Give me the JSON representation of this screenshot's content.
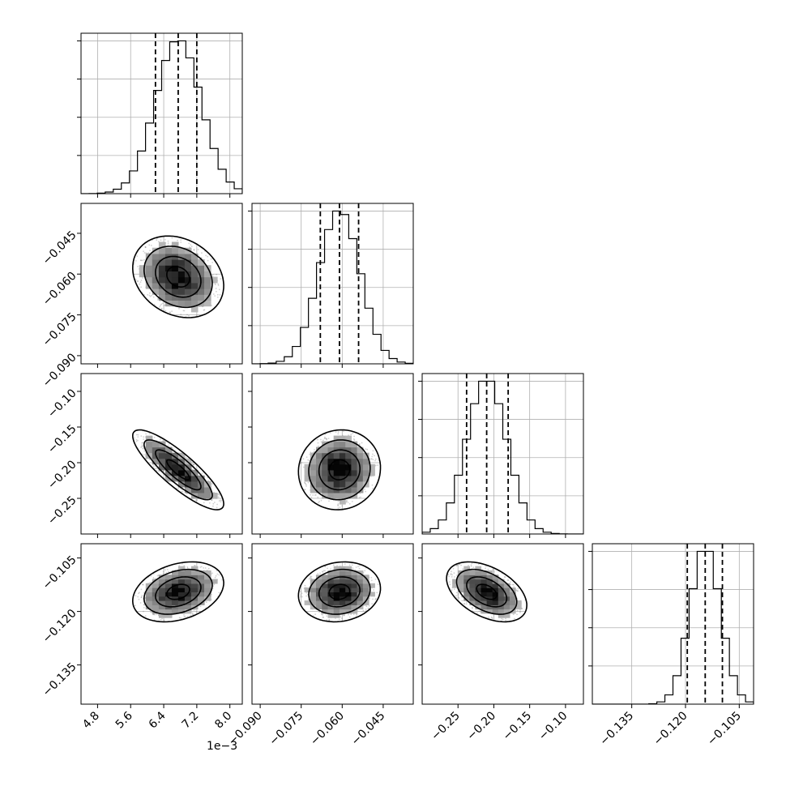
{
  "chart_data": {
    "type": "corner",
    "parameters": [
      {
        "range": [
          4.4,
          8.3
        ],
        "ticks": [
          4.8,
          5.6,
          6.4,
          7.2,
          8.0
        ],
        "tick_labels": [
          "4.8",
          "5.6",
          "6.4",
          "7.2",
          "8.0"
        ],
        "offset_text": "1e−3",
        "mean": 6.75,
        "std": 0.55,
        "quantiles": [
          6.2,
          6.75,
          7.2
        ]
      },
      {
        "range": [
          -0.093,
          -0.034
        ],
        "ticks": [
          -0.09,
          -0.075,
          -0.06,
          -0.045
        ],
        "tick_labels": [
          "−0.090",
          "−0.075",
          "−0.060",
          "−0.045"
        ],
        "mean": -0.061,
        "std": 0.0075,
        "quantiles": [
          -0.068,
          -0.061,
          -0.054
        ]
      },
      {
        "range": [
          -0.3,
          -0.075
        ],
        "ticks": [
          -0.25,
          -0.2,
          -0.15,
          -0.1
        ],
        "tick_labels": [
          "−0.25",
          "−0.20",
          "−0.15",
          "−0.10"
        ],
        "mean": -0.21,
        "std": 0.028,
        "quantiles": [
          -0.238,
          -0.21,
          -0.18
        ]
      },
      {
        "range": [
          -0.146,
          -0.101
        ],
        "ticks": [
          -0.135,
          -0.12,
          -0.105
        ],
        "tick_labels": [
          "−0.135",
          "−0.120",
          "−0.105"
        ],
        "mean": -0.1145,
        "std": 0.0042,
        "quantiles": [
          -0.1195,
          -0.1145,
          -0.1097
        ]
      }
    ],
    "correlations": [
      {
        "row": 1,
        "col": 0,
        "rho": -0.22
      },
      {
        "row": 2,
        "col": 0,
        "rho": -0.85
      },
      {
        "row": 2,
        "col": 1,
        "rho": 0.05
      },
      {
        "row": 3,
        "col": 0,
        "rho": 0.3
      },
      {
        "row": 3,
        "col": 1,
        "rho": 0.12
      },
      {
        "row": 3,
        "col": 2,
        "rho": -0.45
      }
    ],
    "histogram_bins": 20,
    "contour_levels": [
      0.118,
      0.393,
      0.675,
      0.865
    ],
    "grid": true,
    "colors": {
      "line": "#000000",
      "grid": "#b0b0b0",
      "points": "#7a7a7a"
    }
  }
}
